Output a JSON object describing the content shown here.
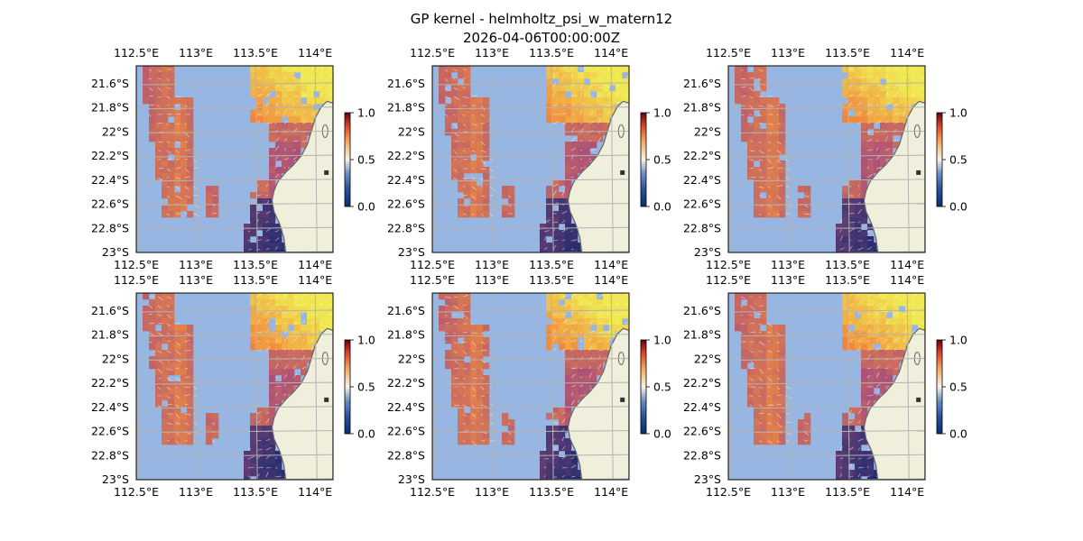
{
  "figure": {
    "title_line1": "GP kernel - helmholtz_psi_w_matern12",
    "title_line2": "2026-04-06T00:00:00Z"
  },
  "colors": {
    "ocean": "#97b6e1",
    "land": "#efefdb",
    "coast": "#666666",
    "grid": "#b3b3b3",
    "colormap_stops": [
      "#08306b",
      "#2a4f9a",
      "#6b8fc4",
      "#f7f4ea",
      "#f4b060",
      "#e04a2a",
      "#67000d"
    ],
    "field_low": "#1a2a6e",
    "field_mid": "#a84f7a",
    "field_high": "#f0e850"
  },
  "chart_data": {
    "type": "heatmap",
    "panel_count": 6,
    "layout": "2 rows x 3 columns",
    "lon_ticks": [
      "112.5°E",
      "113°E",
      "113.5°E",
      "114°E"
    ],
    "lon_tick_values": [
      112.5,
      113.0,
      113.5,
      114.0
    ],
    "lat_ticks": [
      "21.6°S",
      "21.8°S",
      "22°S",
      "22.2°S",
      "22.4°S",
      "22.6°S",
      "22.8°S",
      "23°S"
    ],
    "lat_tick_values": [
      -21.6,
      -21.8,
      -22.0,
      -22.2,
      -22.4,
      -22.6,
      -22.8,
      -23.0
    ],
    "lon_range": [
      112.5,
      114.15
    ],
    "lat_range": [
      -23.0,
      -21.45
    ],
    "colorbar_ticks": [
      "0.0",
      "0.5",
      "1.0"
    ],
    "colorbar_range": [
      0.0,
      1.0
    ],
    "grid": true,
    "overlay": "velocity arrows (quiver)",
    "panels": [
      {
        "id": "r1c1",
        "seed": 1
      },
      {
        "id": "r1c2",
        "seed": 2
      },
      {
        "id": "r1c3",
        "seed": 3
      },
      {
        "id": "r2c1",
        "seed": 4
      },
      {
        "id": "r2c2",
        "seed": 5
      },
      {
        "id": "r2c3",
        "seed": 6
      }
    ]
  }
}
